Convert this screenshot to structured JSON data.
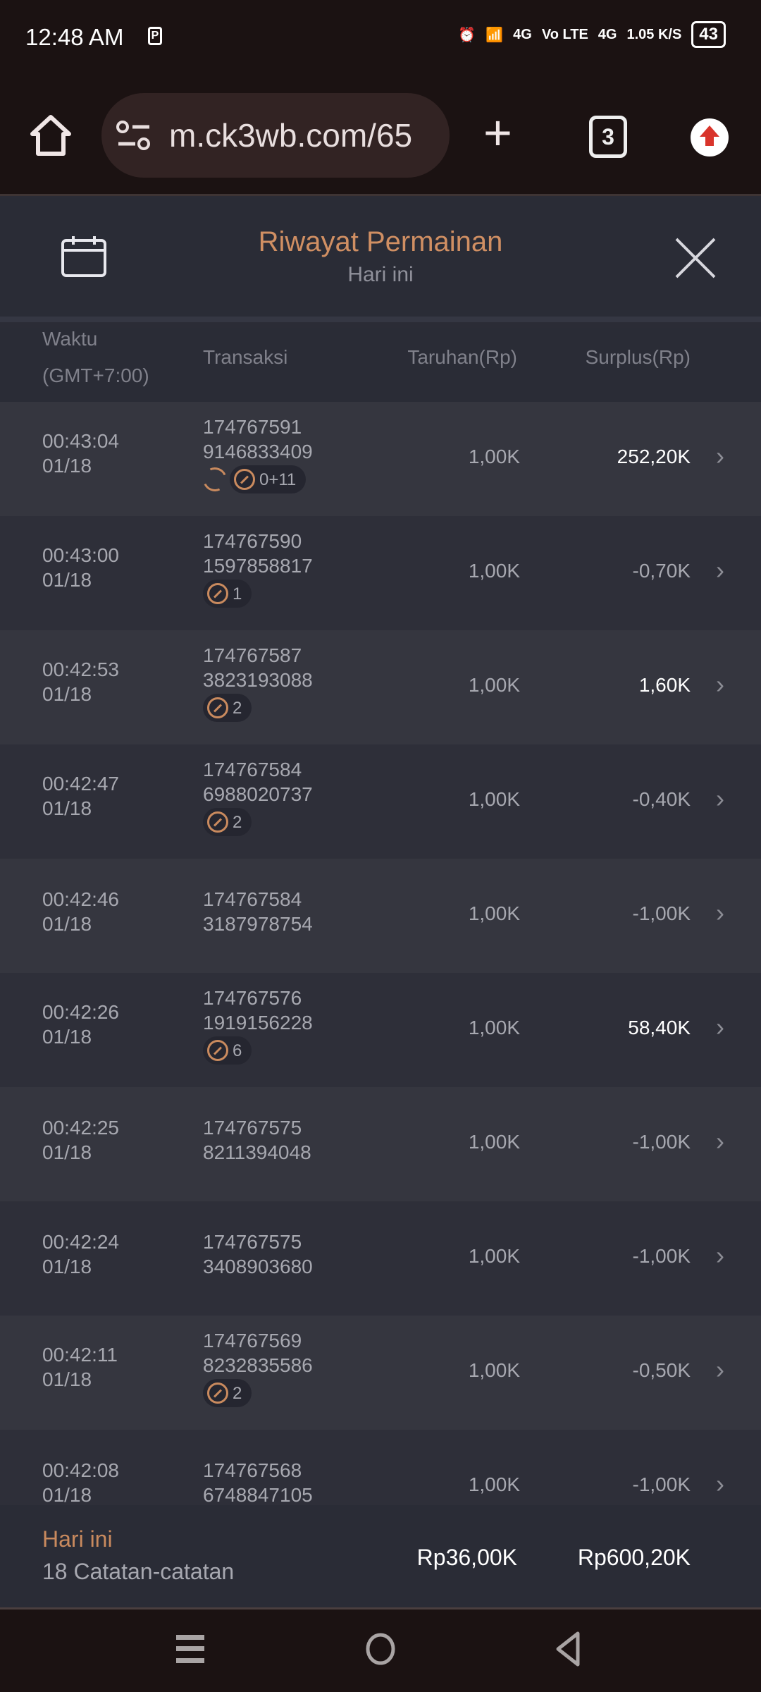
{
  "status_bar": {
    "time": "12:48 AM",
    "net1": "4G",
    "volte": "Vo LTE",
    "net2": "4G",
    "speed": "1.05 K/S",
    "battery": "43"
  },
  "browser": {
    "url": "m.ck3wb.com/65",
    "tab_count": "3"
  },
  "header": {
    "title": "Riwayat Permainan",
    "subtitle": "Hari ini"
  },
  "columns": {
    "time": "Waktu",
    "time_tz": "(GMT+7:00)",
    "tx": "Transaksi",
    "bet": "Taruhan(Rp)",
    "surplus": "Surplus(Rp)"
  },
  "rows": [
    {
      "time": "00:43:04",
      "date": "01/18",
      "tx1": "174767591",
      "tx2": "9146833409",
      "refresh": true,
      "badge": "0+11",
      "bet": "1,00K",
      "surplus": "252,20K",
      "positive": true
    },
    {
      "time": "00:43:00",
      "date": "01/18",
      "tx1": "174767590",
      "tx2": "1597858817",
      "badge": "1",
      "bet": "1,00K",
      "surplus": "-0,70K"
    },
    {
      "time": "00:42:53",
      "date": "01/18",
      "tx1": "174767587",
      "tx2": "3823193088",
      "badge": "2",
      "bet": "1,00K",
      "surplus": "1,60K",
      "positive": true
    },
    {
      "time": "00:42:47",
      "date": "01/18",
      "tx1": "174767584",
      "tx2": "6988020737",
      "badge": "2",
      "bet": "1,00K",
      "surplus": "-0,40K"
    },
    {
      "time": "00:42:46",
      "date": "01/18",
      "tx1": "174767584",
      "tx2": "3187978754",
      "bet": "1,00K",
      "surplus": "-1,00K"
    },
    {
      "time": "00:42:26",
      "date": "01/18",
      "tx1": "174767576",
      "tx2": "1919156228",
      "badge": "6",
      "bet": "1,00K",
      "surplus": "58,40K",
      "positive": true
    },
    {
      "time": "00:42:25",
      "date": "01/18",
      "tx1": "174767575",
      "tx2": "8211394048",
      "bet": "1,00K",
      "surplus": "-1,00K"
    },
    {
      "time": "00:42:24",
      "date": "01/18",
      "tx1": "174767575",
      "tx2": "3408903680",
      "bet": "1,00K",
      "surplus": "-1,00K"
    },
    {
      "time": "00:42:11",
      "date": "01/18",
      "tx1": "174767569",
      "tx2": "8232835586",
      "badge": "2",
      "bet": "1,00K",
      "surplus": "-0,50K"
    },
    {
      "time": "00:42:08",
      "date": "01/18",
      "tx1": "174767568",
      "tx2": "6748847105",
      "bet": "1,00K",
      "surplus": "-1,00K"
    }
  ],
  "footer": {
    "period": "Hari ini",
    "count": "18 Catatan-catatan",
    "total_bet": "Rp36,00K",
    "total_surplus": "Rp600,20K"
  },
  "colors": {
    "accent": "#d08f63",
    "background": "#2b2c36"
  }
}
